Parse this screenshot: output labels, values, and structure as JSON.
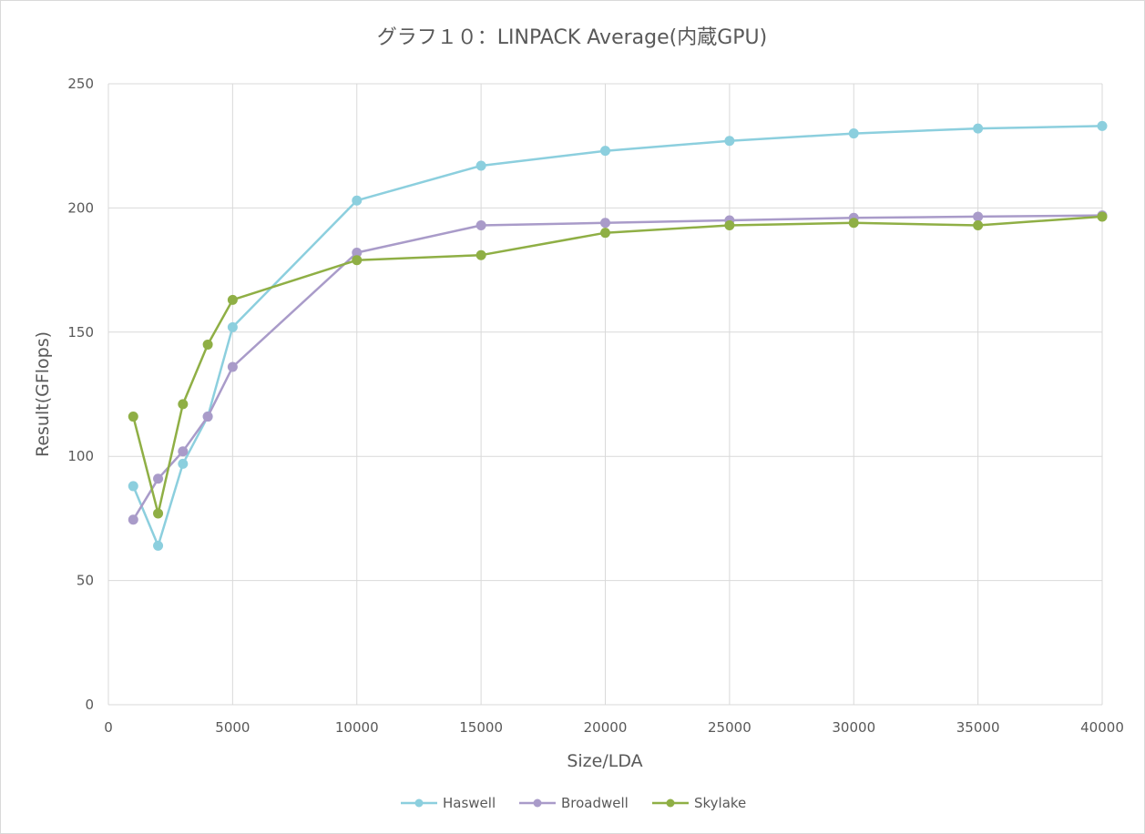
{
  "chart_data": {
    "type": "scatter",
    "title": "グラフ１０：LINPACK Average(内蔵GPU)",
    "xlabel": "Size/LDA",
    "ylabel": "Result(GFlops)",
    "xlim": [
      0,
      40000
    ],
    "ylim": [
      0,
      250
    ],
    "xticks": [
      0,
      5000,
      10000,
      15000,
      20000,
      25000,
      30000,
      35000,
      40000
    ],
    "yticks": [
      0,
      50,
      100,
      150,
      200,
      250
    ],
    "grid": true,
    "legend_position": "bottom",
    "x": [
      1000,
      2000,
      3000,
      4000,
      5000,
      10000,
      15000,
      20000,
      25000,
      30000,
      35000,
      40000
    ],
    "series": [
      {
        "name": "Haswell",
        "color": "#8ccfde",
        "values": [
          88,
          64,
          97,
          116,
          152,
          203,
          217,
          223,
          227,
          230,
          232,
          233
        ]
      },
      {
        "name": "Broadwell",
        "color": "#a99bc9",
        "values": [
          74.5,
          91,
          102,
          116,
          136,
          182,
          193,
          194,
          195,
          196,
          196.5,
          197
        ]
      },
      {
        "name": "Skylake",
        "color": "#8faf45",
        "values": [
          116,
          77,
          121,
          145,
          163,
          179,
          181,
          190,
          193,
          194,
          193,
          196.5
        ]
      }
    ]
  }
}
